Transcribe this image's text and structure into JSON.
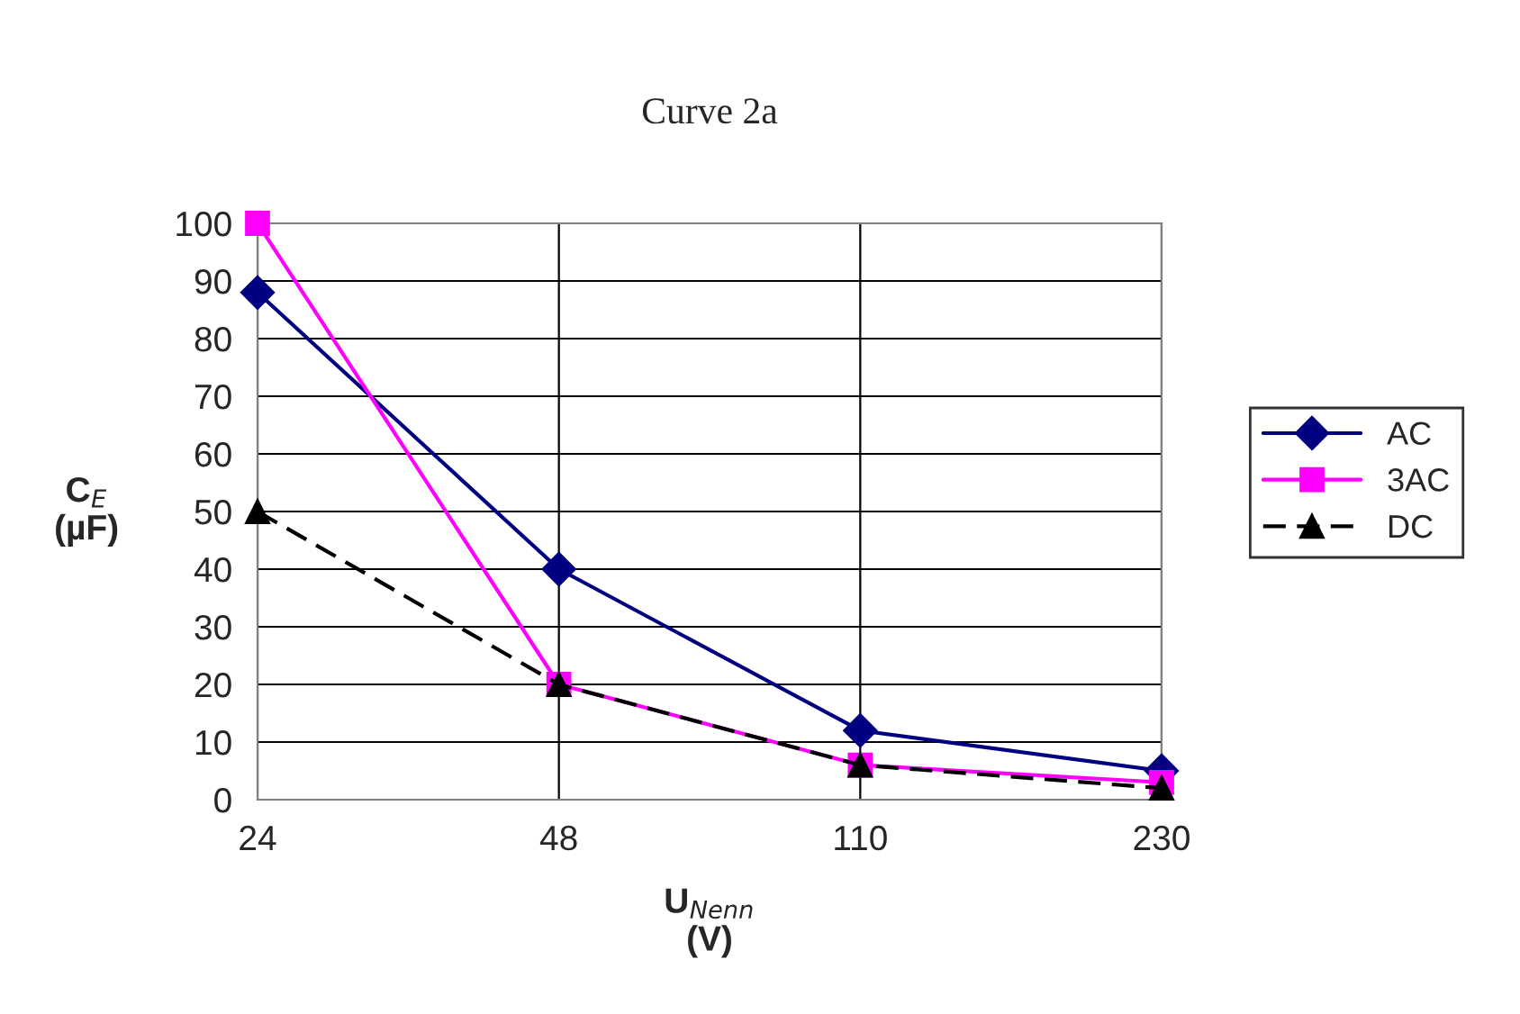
{
  "chart_data": {
    "type": "line",
    "title": "Curve 2a",
    "xlabel": "U$_{Nenn}$\n(V)",
    "ylabel": "C$_{E}$\n(µF)",
    "categories": [
      "24",
      "48",
      "110",
      "230"
    ],
    "series": [
      {
        "name": "AC",
        "color": "#000080",
        "marker": "diamond",
        "line_style": "solid",
        "values": [
          88,
          40,
          12,
          5
        ]
      },
      {
        "name": "3AC",
        "color": "#ff00ff",
        "marker": "square",
        "line_style": "solid",
        "values": [
          100,
          20,
          6,
          3
        ]
      },
      {
        "name": "DC",
        "color": "#000000",
        "marker": "triangle",
        "line_style": "dashed",
        "values": [
          50,
          20,
          6,
          2
        ]
      }
    ],
    "ylim": [
      0,
      100
    ],
    "yticks": [
      0,
      10,
      20,
      30,
      40,
      50,
      60,
      70,
      80,
      90,
      100
    ],
    "grid": true,
    "legend": "right"
  }
}
